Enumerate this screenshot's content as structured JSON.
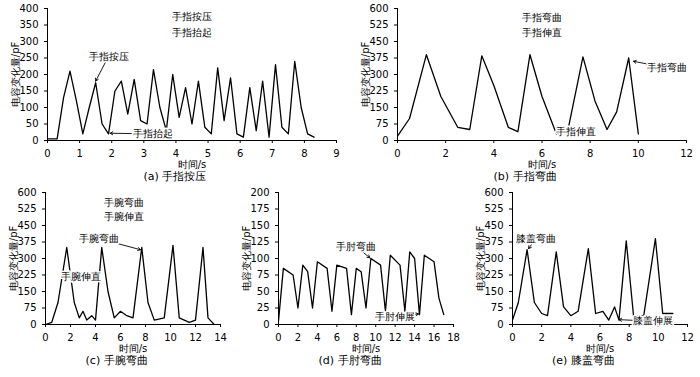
{
  "chart_data": [
    {
      "type": "line",
      "title": "(a) 手指按压",
      "x_label": "时间/s",
      "y_label": "电容变化量/pF",
      "color": "#000000",
      "xlim": [
        0,
        9
      ],
      "xticks": [
        0,
        1,
        2,
        3,
        4,
        5,
        6,
        7,
        8,
        9
      ],
      "ylim": [
        0,
        400
      ],
      "yticks": [
        0,
        50,
        100,
        150,
        200,
        250,
        300,
        350,
        400
      ],
      "x": [
        0,
        0.3,
        0.5,
        0.7,
        0.9,
        1.1,
        1.3,
        1.5,
        1.7,
        1.9,
        2.1,
        2.3,
        2.5,
        2.7,
        2.9,
        3.1,
        3.3,
        3.5,
        3.7,
        3.9,
        4.1,
        4.3,
        4.5,
        4.7,
        4.9,
        5.1,
        5.3,
        5.5,
        5.7,
        5.9,
        6.1,
        6.3,
        6.5,
        6.7,
        6.9,
        7.1,
        7.3,
        7.5,
        7.7,
        7.9,
        8.1,
        8.3
      ],
      "values": [
        5,
        5,
        130,
        210,
        120,
        20,
        100,
        175,
        50,
        20,
        150,
        180,
        80,
        185,
        60,
        50,
        215,
        100,
        30,
        200,
        70,
        160,
        50,
        180,
        40,
        20,
        220,
        60,
        190,
        20,
        10,
        160,
        30,
        180,
        10,
        230,
        40,
        20,
        240,
        100,
        20,
        10
      ],
      "annotations": [
        {
          "text": "手指按压",
          "x": 4.5,
          "y": 375
        },
        {
          "text": "手指抬起",
          "x": 4.5,
          "y": 325
        },
        {
          "text": "手指按压",
          "x": 1.9,
          "y": 255,
          "arrow_to": [
            1.5,
            180
          ]
        },
        {
          "text": "手指抬起",
          "x": 3.3,
          "y": 20,
          "arrow_to": [
            1.95,
            22
          ]
        }
      ]
    },
    {
      "type": "line",
      "title": "(b) 手指弯曲",
      "x_label": "时间/s",
      "y_label": "电容变化量/pF",
      "color": "#000000",
      "xlim": [
        0,
        12
      ],
      "xticks": [
        0,
        2,
        4,
        6,
        8,
        10,
        12
      ],
      "ylim": [
        0,
        600
      ],
      "yticks": [
        0,
        75,
        150,
        225,
        300,
        375,
        450,
        525,
        600
      ],
      "x": [
        0,
        0.5,
        1.2,
        1.8,
        2.5,
        3,
        3.5,
        4,
        4.6,
        5,
        5.5,
        6,
        6.6,
        7.1,
        7.7,
        8.2,
        8.7,
        9.1,
        9.6,
        10
      ],
      "values": [
        20,
        100,
        390,
        200,
        60,
        50,
        385,
        250,
        60,
        40,
        390,
        200,
        30,
        60,
        380,
        180,
        50,
        130,
        375,
        30
      ],
      "annotations": [
        {
          "text": "手指弯曲",
          "x": 6,
          "y": 560
        },
        {
          "text": "手指伸直",
          "x": 6,
          "y": 490
        },
        {
          "text": "手指弯曲",
          "x": 11.2,
          "y": 330,
          "arrow_to": [
            9.8,
            360
          ]
        },
        {
          "text": "手指伸直",
          "x": 7.4,
          "y": 40,
          "arrow_to": [
            6.6,
            35
          ]
        }
      ]
    },
    {
      "type": "line",
      "title": "(c) 手腕弯曲",
      "x_label": "时间/s",
      "y_label": "电容变化量/pF",
      "color": "#000000",
      "xlim": [
        0,
        14
      ],
      "xticks": [
        0,
        2,
        4,
        6,
        8,
        10,
        12,
        14
      ],
      "ylim": [
        0,
        600
      ],
      "yticks": [
        0,
        75,
        150,
        225,
        300,
        375,
        450,
        525,
        600
      ],
      "x": [
        0,
        0.5,
        1,
        1.7,
        2.3,
        2.7,
        3,
        3.3,
        3.7,
        4,
        4.5,
        5,
        5.5,
        6,
        6.5,
        7,
        7.7,
        8.2,
        8.7,
        9.5,
        10.2,
        10.7,
        11.5,
        12,
        12.6,
        13,
        13.5
      ],
      "values": [
        0,
        10,
        100,
        350,
        100,
        30,
        60,
        20,
        40,
        20,
        350,
        150,
        30,
        60,
        40,
        30,
        350,
        100,
        20,
        30,
        360,
        30,
        10,
        20,
        350,
        30,
        0
      ],
      "annotations": [
        {
          "text": "手腕弯曲",
          "x": 6.3,
          "y": 555
        },
        {
          "text": "手腕伸直",
          "x": 6.3,
          "y": 490
        },
        {
          "text": "手腕弯曲",
          "x": 4.3,
          "y": 390,
          "arrow_to": [
            7.6,
            340
          ]
        },
        {
          "text": "手腕伸直",
          "x": 2.8,
          "y": 215
        }
      ]
    },
    {
      "type": "line",
      "title": "(d) 手肘弯曲",
      "x_label": "时间/s",
      "y_label": "电容变化量/pF",
      "color": "#000000",
      "xlim": [
        0,
        18
      ],
      "xticks": [
        0,
        2,
        4,
        6,
        8,
        10,
        12,
        14,
        16,
        18
      ],
      "ylim": [
        0,
        200
      ],
      "yticks": [
        0,
        25,
        50,
        75,
        100,
        125,
        150,
        175,
        200
      ],
      "x": [
        0,
        0.5,
        1.5,
        2,
        2.5,
        3,
        3.5,
        4,
        5,
        5.5,
        6,
        7,
        7.5,
        8,
        8.5,
        9,
        9.5,
        10.5,
        11,
        11.5,
        12.5,
        13,
        13.5,
        14,
        14.5,
        15,
        16,
        16.5,
        17
      ],
      "values": [
        5,
        85,
        75,
        25,
        90,
        80,
        25,
        95,
        85,
        20,
        90,
        85,
        15,
        85,
        80,
        25,
        100,
        90,
        20,
        105,
        90,
        20,
        110,
        100,
        15,
        105,
        95,
        40,
        15
      ],
      "annotations": [
        {
          "text": "手肘弯曲",
          "x": 8,
          "y": 118,
          "arrow_to": [
            9.4,
            101
          ]
        },
        {
          "text": "手肘伸展",
          "x": 12,
          "y": 12,
          "arrow_to": [
            14.4,
            16
          ]
        }
      ]
    },
    {
      "type": "line",
      "title": "(e) 膝盖弯曲",
      "x_label": "时间/s",
      "y_label": "电容变化量/pF",
      "color": "#000000",
      "xlim": [
        0,
        12
      ],
      "xticks": [
        0,
        2,
        4,
        6,
        8,
        10,
        12
      ],
      "ylim": [
        0,
        600
      ],
      "yticks": [
        0,
        75,
        150,
        225,
        300,
        375,
        450,
        525,
        600
      ],
      "x": [
        0,
        0.4,
        1,
        1.5,
        2,
        2.4,
        3,
        3.5,
        4,
        4.5,
        5.2,
        5.7,
        6.2,
        6.6,
        7,
        7.3,
        7.8,
        8.3,
        9,
        9.8,
        10.3,
        11
      ],
      "values": [
        20,
        100,
        340,
        100,
        50,
        40,
        330,
        80,
        40,
        60,
        345,
        50,
        60,
        20,
        80,
        20,
        380,
        40,
        40,
        390,
        50,
        50
      ],
      "annotations": [
        {
          "text": "膝盖弯曲",
          "x": 1.6,
          "y": 390,
          "arrow_to": [
            1.1,
            345
          ]
        },
        {
          "text": "膝盖伸展",
          "x": 9.6,
          "y": 15,
          "arrow_to": [
            7.3,
            22
          ]
        }
      ]
    }
  ]
}
